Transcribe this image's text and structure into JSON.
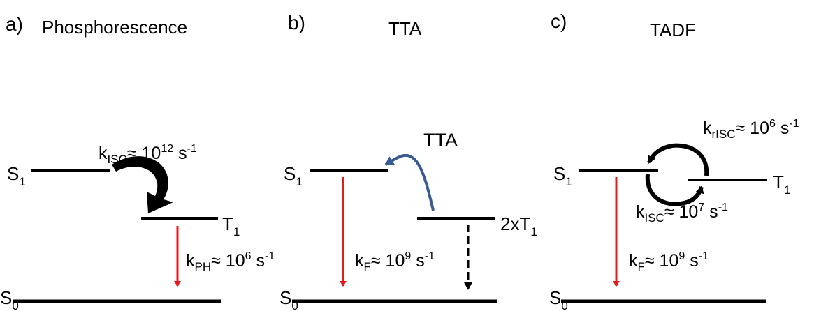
{
  "panels": {
    "a": {
      "letter": "a)",
      "title": "Phosphorescence",
      "levels": {
        "s1": [
          "S",
          "1"
        ],
        "t1": [
          "T",
          "1"
        ],
        "s0": [
          "S",
          "0"
        ]
      },
      "rates": {
        "isc": [
          "k",
          "ISC",
          "≈ 10",
          "12",
          " s",
          "-1"
        ],
        "ph": [
          "k",
          "PH",
          "≈ 10",
          "6",
          " s",
          "-1"
        ]
      }
    },
    "b": {
      "letter": "b)",
      "title": "TTA",
      "arrow_label": "TTA",
      "levels": {
        "s1": [
          "S",
          "1"
        ],
        "t1": [
          "2xT",
          "1"
        ],
        "s0": [
          "S",
          "0"
        ]
      },
      "rates": {
        "f": [
          "k",
          "F",
          "≈ 10",
          "9",
          " s",
          "-1"
        ]
      }
    },
    "c": {
      "letter": "c)",
      "title": "TADF",
      "levels": {
        "s1": [
          "S",
          "1"
        ],
        "t1": [
          "T",
          "1"
        ],
        "s0": [
          "S",
          "0"
        ]
      },
      "rates": {
        "risc": [
          "k",
          "rISC",
          "≈ 10",
          "6",
          " s",
          "-1"
        ],
        "isc": [
          "k",
          "ISC",
          "≈ 10",
          "7",
          " s",
          "-1"
        ],
        "f": [
          "k",
          "F",
          "≈ 10",
          "9",
          " s",
          "-1"
        ]
      }
    }
  },
  "colors": {
    "emission": "#e41a1c",
    "tta_arrow": "#3a5a92",
    "line": "#000000"
  }
}
